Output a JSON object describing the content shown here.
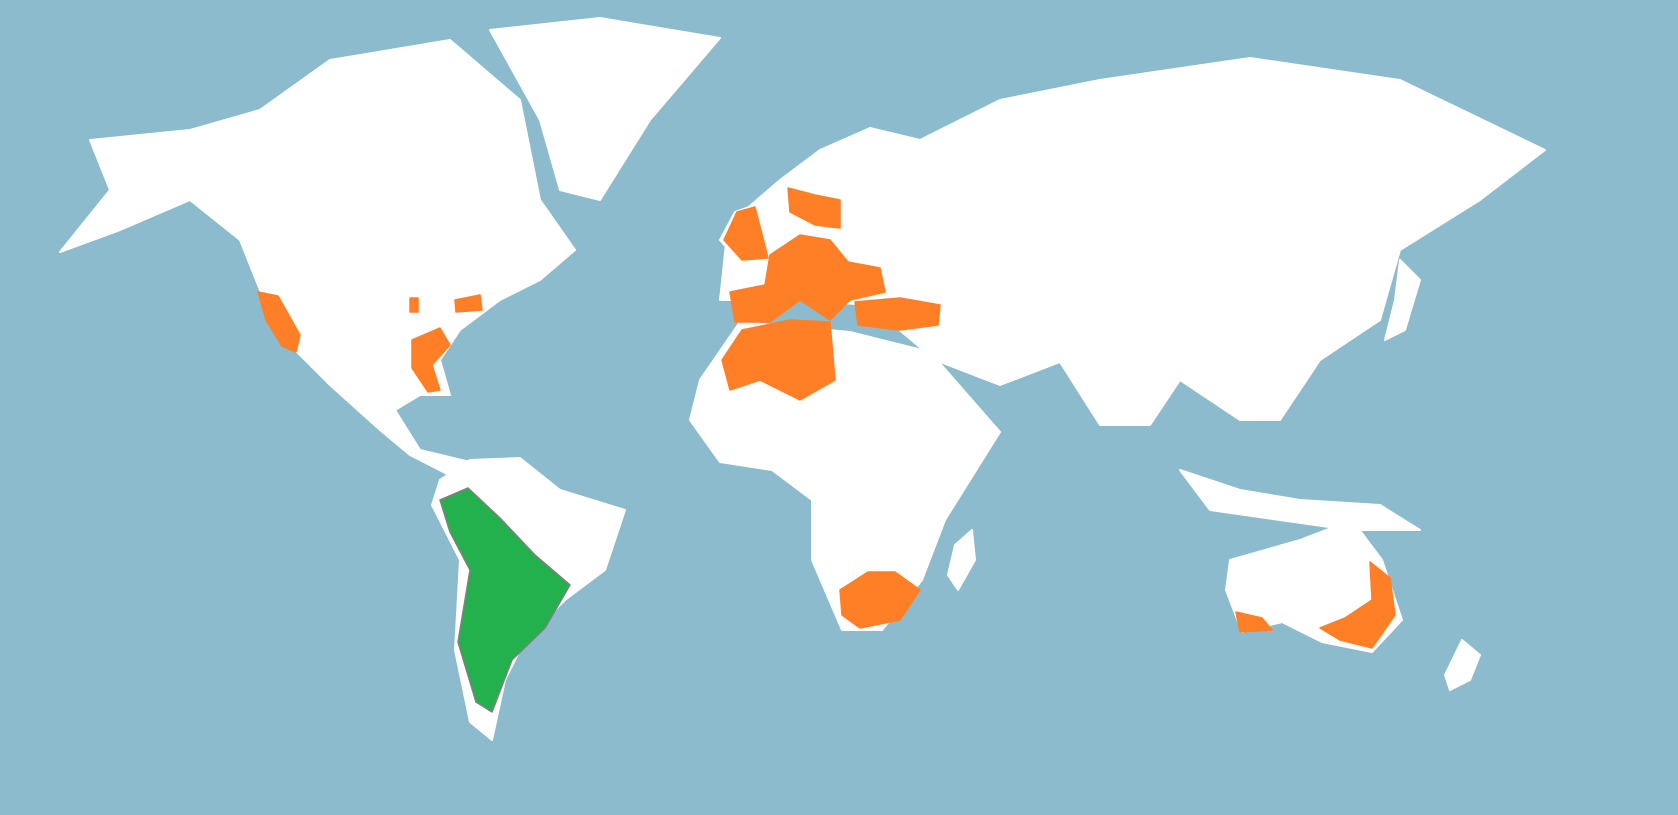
{
  "map": {
    "projection": "equirectangular-world",
    "colors": {
      "ocean": "#8bbbcc",
      "land": "#ffffff",
      "border": "#808080",
      "native_range": "#22b14c",
      "introduced_range": "#ff7f27"
    },
    "legend": null
  }
}
